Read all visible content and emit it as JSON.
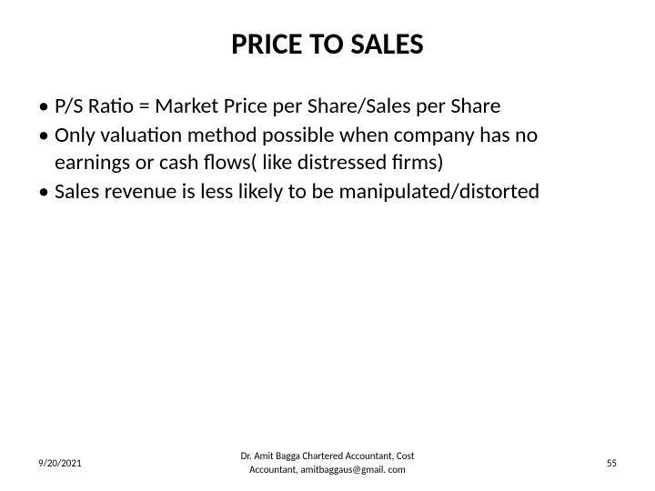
{
  "title": "PRICE TO SALES",
  "bullets": [
    {
      "marker": "•",
      "text": "P/S Ratio = Market Price per Share/Sales per Share"
    },
    {
      "marker": "•",
      "text": "Only valuation method possible when company has no earnings or cash flows( like distressed firms)"
    },
    {
      "marker": "•",
      "text": "Sales revenue is less likely to be manipulated/distorted"
    }
  ],
  "footer": {
    "date": "9/20/2021",
    "author_line1": "Dr. Amit Bagga Chartered Accountant, Cost",
    "author_line2": "Accountant, amitbaggaus@gmail. com",
    "page_number": "55"
  },
  "styling": {
    "background_color": "#ffffff",
    "title_fontsize": 33,
    "title_weight": "bold",
    "body_fontsize": 24,
    "footer_fontsize": 11,
    "text_color": "#000000",
    "font_family": "Calibri"
  }
}
